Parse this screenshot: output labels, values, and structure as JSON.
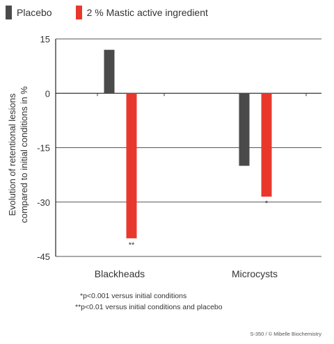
{
  "chart_data": {
    "type": "bar",
    "categories": [
      "Blackheads",
      "Microcysts"
    ],
    "series": [
      {
        "name": "Placebo",
        "color": "#4a4a4a",
        "values": [
          12,
          -20
        ]
      },
      {
        "name": "2 % Mastic active ingredient",
        "color": "#e8382d",
        "values": [
          -40,
          -28.5
        ]
      }
    ],
    "value_annotations": [
      {
        "series": 1,
        "category": 0,
        "text": "**"
      },
      {
        "series": 1,
        "category": 1,
        "text": "*"
      }
    ],
    "ylim": [
      -45,
      15
    ],
    "yticks": [
      15,
      0,
      -15,
      -30,
      -45
    ],
    "ylabel_lines": [
      "Evolution of retentional lesions",
      "compared to initial conditions in %"
    ],
    "xlabel": "",
    "grid": "horizontal",
    "legend_position": "top-left"
  },
  "footnotes": [
    "*p<0.001 versus initial conditions",
    "**p<0.01 versus initial conditions and placebo"
  ],
  "credit": "S-350 / © Mibelle Biochemistry"
}
